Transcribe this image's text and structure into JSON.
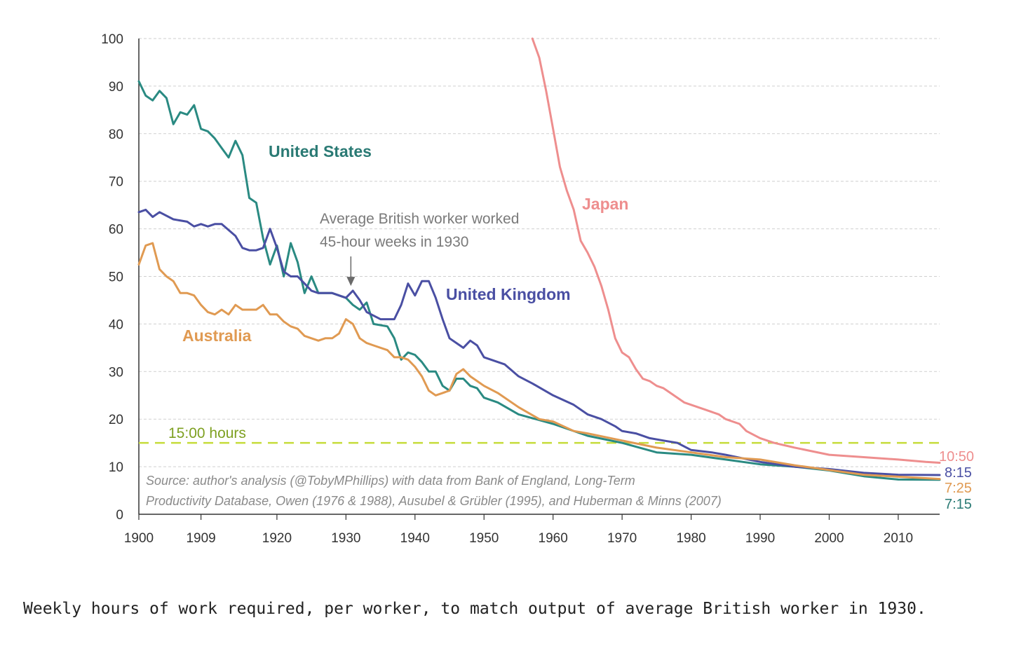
{
  "caption": "Weekly hours of work required, per worker, to match output of average British worker in 1930.",
  "chart_data": {
    "type": "line",
    "title": "",
    "xlabel": "",
    "ylabel": "",
    "xlim": [
      1900,
      2016
    ],
    "ylim": [
      0,
      100
    ],
    "x_ticks": [
      1900,
      1909,
      1920,
      1930,
      1940,
      1950,
      1960,
      1970,
      1980,
      1990,
      2000,
      2010
    ],
    "y_ticks": [
      0,
      10,
      20,
      30,
      40,
      50,
      60,
      70,
      80,
      90,
      100
    ],
    "grid": "horizontal dashed",
    "series": [
      {
        "name": "United States",
        "color": "#2a8a82",
        "end_label": "7:15",
        "x": [
          1900,
          1901,
          1902,
          1903,
          1904,
          1905,
          1906,
          1907,
          1908,
          1909,
          1910,
          1911,
          1912,
          1913,
          1914,
          1915,
          1916,
          1917,
          1918,
          1919,
          1920,
          1921,
          1922,
          1923,
          1924,
          1925,
          1926,
          1928,
          1930,
          1931,
          1932,
          1933,
          1934,
          1936,
          1937,
          1938,
          1939,
          1940,
          1941,
          1942,
          1943,
          1944,
          1945,
          1946,
          1947,
          1948,
          1949,
          1950,
          1952,
          1955,
          1960,
          1965,
          1970,
          1975,
          1980,
          1985,
          1990,
          1995,
          2000,
          2005,
          2010,
          2016
        ],
        "y": [
          91,
          88,
          87,
          89,
          87.5,
          82,
          84.5,
          84,
          86,
          81,
          80.5,
          79,
          77,
          75,
          78.5,
          75.5,
          66.5,
          65.5,
          58,
          52.5,
          56.5,
          50,
          57,
          53,
          46.5,
          50,
          46.5,
          46.5,
          45.5,
          44,
          43,
          44.5,
          40,
          39.5,
          37,
          32.5,
          34,
          33.5,
          32,
          30,
          30,
          27,
          26,
          28.5,
          28.5,
          27,
          26.5,
          24.5,
          23.5,
          21,
          19,
          16.5,
          15,
          13,
          12.5,
          11.5,
          10.5,
          10,
          9.2,
          8,
          7.3,
          7.25
        ]
      },
      {
        "name": "United Kingdom",
        "color": "#4a4fa3",
        "end_label": "8:15",
        "x": [
          1900,
          1901,
          1902,
          1903,
          1905,
          1907,
          1908,
          1909,
          1910,
          1911,
          1912,
          1914,
          1915,
          1916,
          1917,
          1918,
          1919,
          1920,
          1921,
          1922,
          1923,
          1924,
          1925,
          1926,
          1928,
          1930,
          1931,
          1932,
          1933,
          1935,
          1936,
          1937,
          1938,
          1939,
          1940,
          1941,
          1942,
          1943,
          1944,
          1945,
          1946,
          1947,
          1948,
          1949,
          1950,
          1951,
          1952,
          1953,
          1955,
          1957,
          1960,
          1963,
          1965,
          1967,
          1969,
          1970,
          1972,
          1974,
          1976,
          1978,
          1980,
          1983,
          1985,
          1990,
          1995,
          2000,
          2005,
          2010,
          2016
        ],
        "y": [
          63.5,
          64,
          62.5,
          63.5,
          62,
          61.5,
          60.5,
          61,
          60.5,
          61,
          61,
          58.5,
          56,
          55.5,
          55.5,
          56,
          60,
          56,
          51,
          50,
          50,
          48.5,
          47,
          46.5,
          46.5,
          45.5,
          47,
          45,
          42.5,
          41,
          41,
          41,
          44,
          48.5,
          46,
          49,
          49,
          45.5,
          41,
          37,
          36,
          35,
          36.5,
          35.5,
          33,
          32.5,
          32,
          31.5,
          29,
          27.5,
          25,
          23,
          21,
          20,
          18.5,
          17.5,
          17,
          16,
          15.5,
          15,
          13.5,
          13,
          12.5,
          11,
          10,
          9.5,
          8.7,
          8.3,
          8.25
        ]
      },
      {
        "name": "Australia",
        "color": "#e09a52",
        "end_label": "7:25",
        "x": [
          1900,
          1901,
          1902,
          1903,
          1904,
          1905,
          1906,
          1907,
          1908,
          1909,
          1910,
          1911,
          1912,
          1913,
          1914,
          1915,
          1916,
          1917,
          1918,
          1919,
          1920,
          1921,
          1922,
          1923,
          1924,
          1925,
          1926,
          1927,
          1928,
          1929,
          1930,
          1931,
          1932,
          1933,
          1934,
          1936,
          1937,
          1938,
          1939,
          1940,
          1941,
          1942,
          1943,
          1944,
          1945,
          1946,
          1947,
          1948,
          1949,
          1950,
          1952,
          1955,
          1958,
          1960,
          1963,
          1965,
          1970,
          1975,
          1980,
          1985,
          1990,
          1995,
          2000,
          2005,
          2010,
          2016
        ],
        "y": [
          52.5,
          56.5,
          57,
          51.5,
          50,
          49,
          46.5,
          46.5,
          46,
          44,
          42.5,
          42,
          43,
          42,
          44,
          43,
          43,
          43,
          44,
          42,
          42,
          40.5,
          39.5,
          39,
          37.5,
          37,
          36.5,
          37,
          37,
          38,
          41,
          40,
          37,
          36,
          35.5,
          34.5,
          33,
          33,
          32.5,
          31,
          29,
          26,
          25,
          25.5,
          26,
          29.5,
          30.5,
          29,
          28,
          27,
          25.5,
          22.5,
          20,
          19.5,
          17.5,
          17,
          15.5,
          14,
          13,
          12,
          11.5,
          10.3,
          9.3,
          8.3,
          7.9,
          7.42
        ]
      },
      {
        "name": "Japan",
        "color": "#ee8e8e",
        "end_label": "10:50",
        "x": [
          1957,
          1958,
          1959,
          1960,
          1961,
          1962,
          1963,
          1964,
          1965,
          1966,
          1967,
          1968,
          1969,
          1970,
          1971,
          1972,
          1973,
          1974,
          1975,
          1976,
          1977,
          1978,
          1979,
          1980,
          1982,
          1984,
          1985,
          1987,
          1988,
          1990,
          1992,
          1995,
          2000,
          2005,
          2010,
          2014,
          2016
        ],
        "y": [
          100,
          96,
          89,
          81,
          73,
          68,
          64,
          57.5,
          55,
          52,
          48,
          43,
          37,
          34,
          33,
          30.5,
          28.5,
          28,
          27,
          26.5,
          25.5,
          24.5,
          23.5,
          23,
          22,
          21,
          20,
          19,
          17.5,
          16,
          15,
          14,
          12.5,
          12,
          11.5,
          11,
          10.83
        ]
      }
    ],
    "reference_lines": [
      {
        "y": 15,
        "label": "15:00 hours",
        "color": "#c6dc3a"
      }
    ],
    "annotations": [
      {
        "text": [
          "Average British worker worked",
          "45-hour weeks in 1930"
        ],
        "arrow_to": [
          1930,
          48
        ]
      }
    ],
    "source": [
      "Source: author's analysis (@TobyMPhillips) with data from Bank of England, Long-Term",
      "Productivity Database, Owen (1976 & 1988), Ausubel & Grübler (1995), and Huberman & Minns (2007)"
    ]
  }
}
